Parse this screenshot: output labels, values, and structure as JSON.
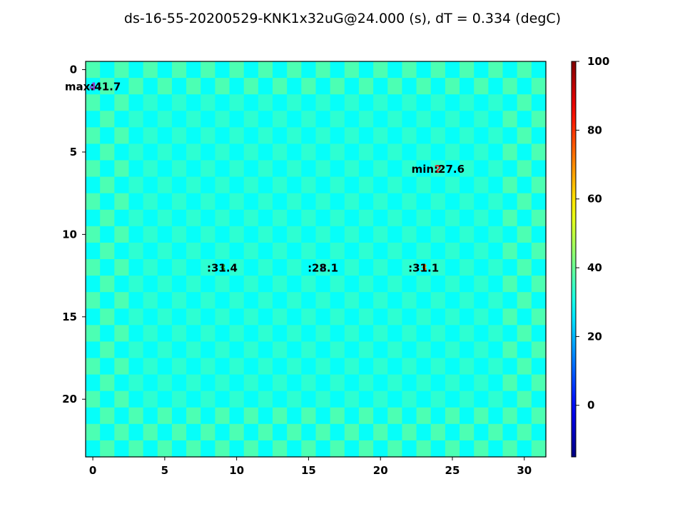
{
  "chart_data": {
    "type": "heatmap",
    "title": "ds-16-55-20200529-KNK1x32uG@24.000 (s), dT = 0.334 (degC)",
    "grid": {
      "cols": 32,
      "rows": 24
    },
    "xlim": [
      -0.5,
      31.5
    ],
    "ylim": [
      23.5,
      -0.5
    ],
    "x_ticks": [
      0,
      5,
      10,
      15,
      20,
      25,
      30
    ],
    "y_ticks": [
      0,
      5,
      10,
      15,
      20
    ],
    "colorbar": {
      "min": -15,
      "max": 100,
      "ticks": [
        0,
        20,
        40,
        60,
        80,
        100
      ],
      "colormap": "jet"
    },
    "background_value": 31.0,
    "checker_amplitude": 2.2,
    "edge_boost": 3.5,
    "annotations": [
      {
        "text": "max:41.7",
        "x": 0,
        "y": 1,
        "marker": "4",
        "marker_color": "#8a3fd1"
      },
      {
        "text": "min:27.6",
        "x": 24,
        "y": 6,
        "marker": "2",
        "marker_color": "#d62728"
      },
      {
        "text": ":31.4",
        "x": 9,
        "y": 12,
        "marker": "3",
        "marker_color": "#2ca02c"
      },
      {
        "text": ":28.1",
        "x": 16,
        "y": 12,
        "marker": "2",
        "marker_color": "#1f77b4"
      },
      {
        "text": ":31.1",
        "x": 23,
        "y": 12,
        "marker": "3",
        "marker_color": "#ff7f0e"
      }
    ]
  }
}
